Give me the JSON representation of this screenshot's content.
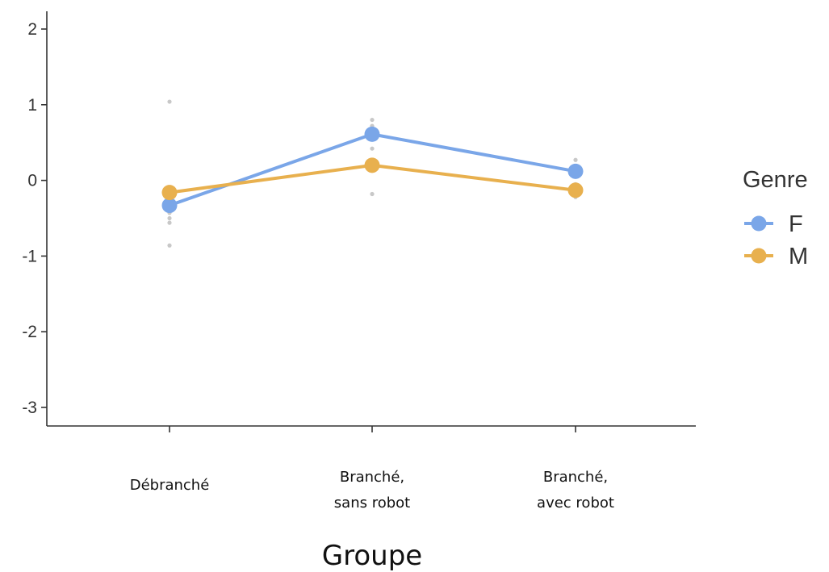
{
  "chart_data": {
    "type": "line",
    "xlabel": "Groupe",
    "ylabel": "",
    "ylim": [
      -3.2,
      2.2
    ],
    "yticks": [
      "-3",
      "-2",
      "-1",
      "0",
      "1",
      "2"
    ],
    "categories": [
      [
        "Débranché"
      ],
      [
        "Branché,",
        "sans robot"
      ],
      [
        "Branché,",
        "avec robot"
      ]
    ],
    "legend": {
      "title": "Genre",
      "position": "right"
    },
    "series": [
      {
        "name": "F",
        "color": "#7aa6e8",
        "values": [
          -0.33,
          0.61,
          0.12
        ]
      },
      {
        "name": "M",
        "color": "#e8b04e",
        "values": [
          -0.16,
          0.2,
          -0.13
        ]
      }
    ],
    "scatter_points": [
      {
        "category": 0,
        "values": [
          1.04,
          -0.43,
          -0.5,
          -0.56,
          -0.86
        ]
      },
      {
        "category": 1,
        "values": [
          0.8,
          0.72,
          0.62,
          0.42,
          -0.18
        ]
      },
      {
        "category": 2,
        "values": [
          0.27,
          0.18,
          -0.05,
          -0.22
        ]
      }
    ],
    "scatter_color": "#c8c8c8",
    "grid": false
  }
}
